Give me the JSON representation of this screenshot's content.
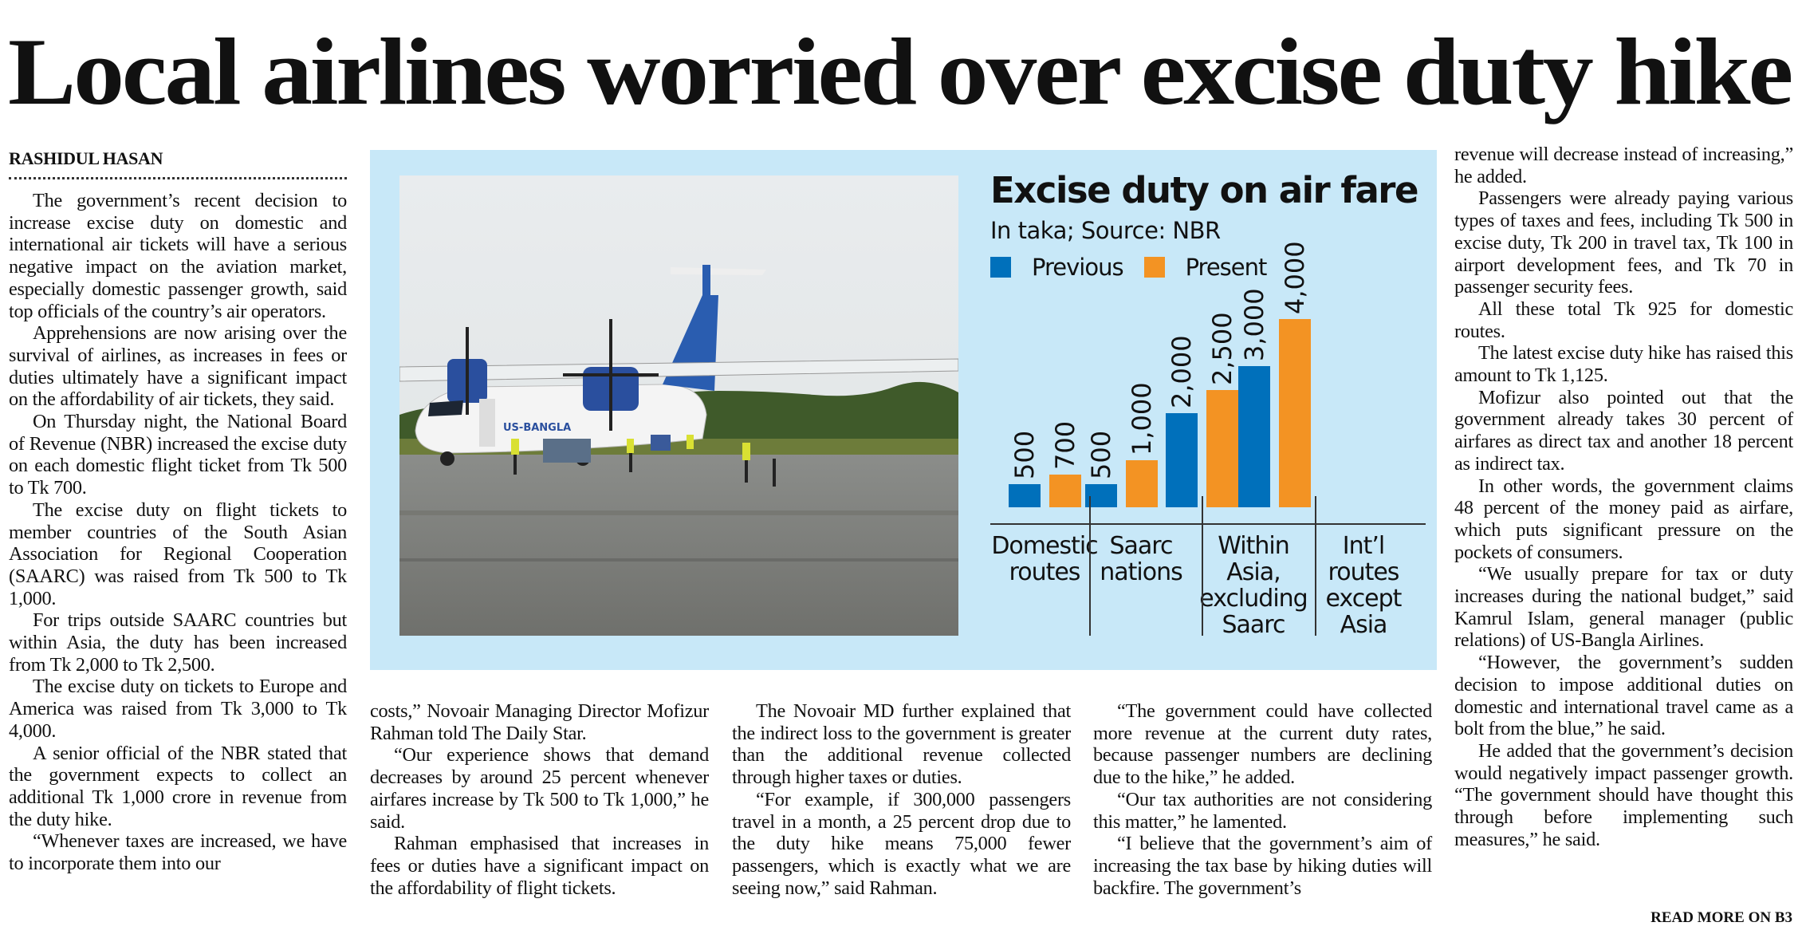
{
  "headline": "Local airlines worried over excise duty hike",
  "byline": "RASHIDUL HASAN",
  "columns": [
    {
      "continued": false,
      "paragraphs": [
        "The government’s recent decision to increase excise duty on domestic and international air tickets will have a serious negative impact on the aviation market, especially domestic passenger growth, said top officials of the country’s air operators.",
        "Apprehensions are now arising over the survival of airlines, as increases in fees or duties ultimately have a significant impact on the affordability of air tickets, they said.",
        "On Thursday night, the National Board of Revenue (NBR) increased the excise duty on each domestic flight ticket from Tk 500 to Tk 700.",
        "The excise duty on flight tickets to member countries of the South Asian Association for Regional Cooperation (SAARC) was raised from Tk 500 to Tk 1,000.",
        "For trips outside SAARC countries but within Asia, the duty has been increased from Tk 2,000 to Tk 2,500.",
        "The excise duty on tickets to Europe and America was raised from Tk 3,000 to Tk 4,000.",
        "A senior official of the NBR stated that the government expects to collect an additional Tk 1,000 crore in revenue from the duty hike.",
        "“Whenever taxes are increased, we have to incorporate them into our"
      ]
    },
    {
      "continued": true,
      "paragraphs": [
        "costs,” Novoair Managing Director Mofizur Rahman told The Daily Star.",
        "“Our experience shows that demand decreases by around 25 percent whenever airfares increase by Tk 500 to Tk 1,000,” he said.",
        "Rahman emphasised that increases in fees or duties have a significant impact on the affordability of flight tickets."
      ]
    },
    {
      "continued": false,
      "paragraphs": [
        "The Novoair MD further explained that the indirect loss to the government is greater than the additional revenue collected through higher taxes or duties.",
        "“For example, if 300,000 passengers travel in a month, a 25 percent drop due to the duty hike means 75,000 fewer passengers, which is exactly what we are seeing now,” said Rahman."
      ]
    },
    {
      "continued": false,
      "paragraphs": [
        "“The government could have collected more revenue at the current duty rates, because passenger numbers are declining due to the hike,” he added.",
        "“Our tax authorities are not considering this matter,” he lamented.",
        "“I believe that the government’s aim of increasing the tax base by hiking duties will backfire. The government’s"
      ]
    },
    {
      "continued": true,
      "paragraphs": [
        "revenue will decrease instead of increasing,” he added.",
        "Passengers were already paying various types of taxes and fees, including Tk 500 in excise duty, Tk 200 in travel tax, Tk 100 in airport development fees, and Tk 70 in passenger security fees.",
        "All these total Tk 925 for domestic routes.",
        "The latest excise duty hike has raised this amount to Tk 1,125.",
        "Mofizur also pointed out that the government already takes 30 percent of airfares as direct tax and another 18 percent as indirect tax.",
        "In other words, the government claims 48 percent of the money paid as airfare, which puts significant pressure on the pockets of consumers.",
        "“We usually prepare for tax or duty increases during the national budget,” said Kamrul Islam, general manager (public relations) of US-Bangla Airlines.",
        "“However, the government’s sudden decision to impose additional duties on domestic and international travel came as a bolt from the blue,” he said.",
        "He added that the government’s decision would negatively impact passenger growth. “The government should have thought this through before implementing such measures,” he said."
      ]
    }
  ],
  "read_more": "READ MORE ON B3",
  "photo": {
    "airline_livery_text": "US-BANGLA"
  },
  "colors": {
    "box_bg": "#c8e8f8",
    "previous": "#0070bb",
    "present": "#f39323"
  },
  "chart_data": {
    "type": "bar",
    "title": "Excise duty on air fare",
    "subtitle": "In taka; Source: NBR",
    "categories": [
      [
        "Domestic",
        "routes"
      ],
      [
        "Saarc",
        "nations"
      ],
      [
        "Within",
        "Asia,",
        "excluding",
        "Saarc"
      ],
      [
        "Int’l",
        "routes",
        "except",
        "Asia"
      ]
    ],
    "series": [
      {
        "name": "Previous",
        "values": [
          500,
          500,
          2000,
          3000
        ],
        "labels": [
          "500",
          "500",
          "2,000",
          "3,000"
        ]
      },
      {
        "name": "Present",
        "values": [
          700,
          1000,
          2500,
          4000
        ],
        "labels": [
          "700",
          "1,000",
          "2,500",
          "4,000"
        ]
      }
    ],
    "legend": "top-left",
    "ylim": [
      0,
      4000
    ],
    "grid": false
  }
}
